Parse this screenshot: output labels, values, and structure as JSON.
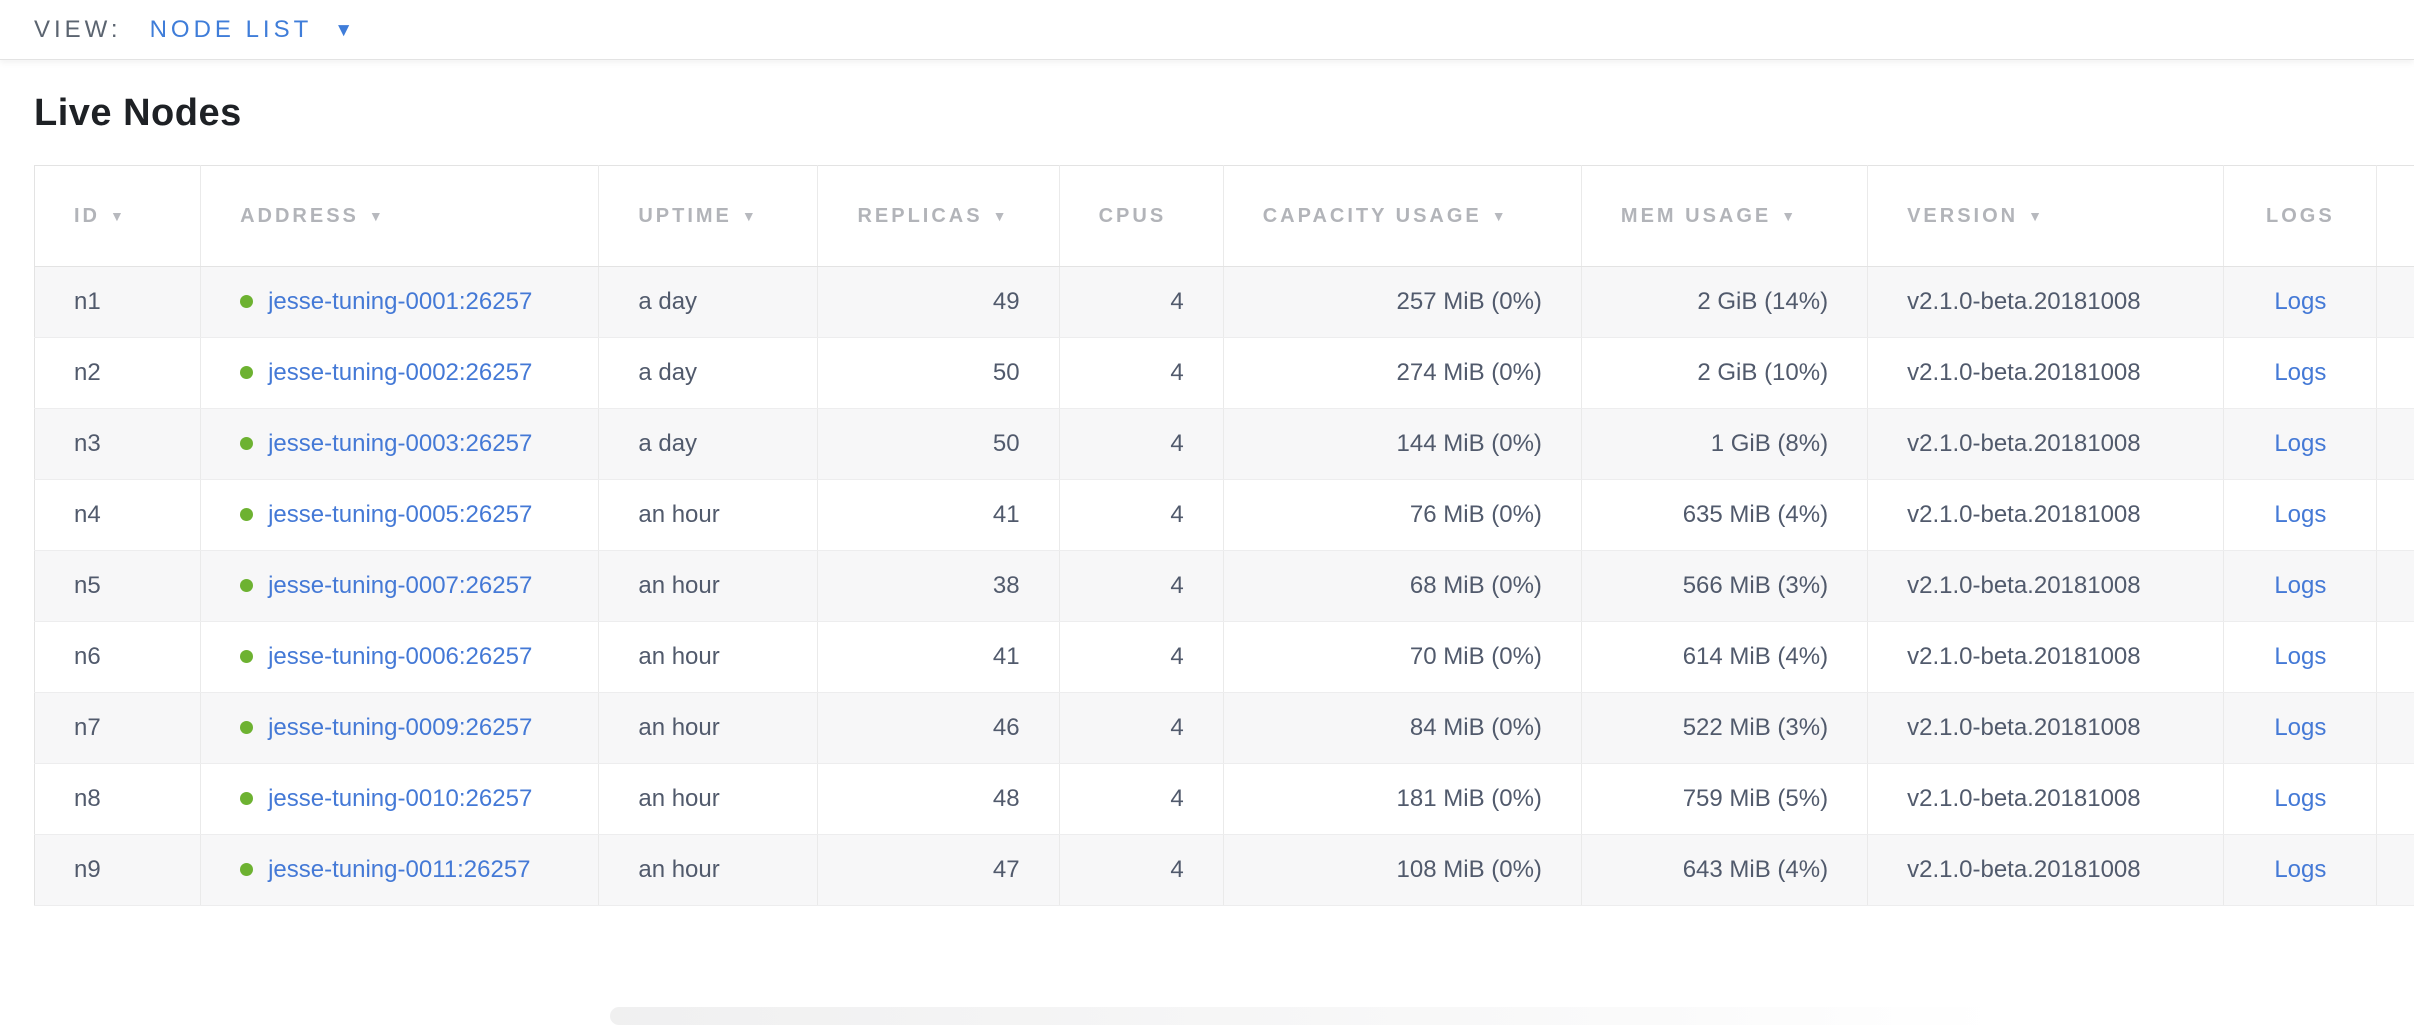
{
  "view_bar": {
    "label": "VIEW:",
    "selected": "NODE LIST"
  },
  "page": {
    "title": "Live Nodes"
  },
  "icons": {
    "dropdown_caret": "▼",
    "sort_desc": "▼",
    "status_dot": "live-green-dot"
  },
  "colors": {
    "accent_blue": "#3f7dd9",
    "link_blue": "#4479d6",
    "status_green": "#6db231",
    "header_gray": "#b2b4b9",
    "cell_text": "#515a6c",
    "row_stripe": "#f7f7f8"
  },
  "table": {
    "columns": [
      {
        "key": "id",
        "label": "ID",
        "sortable": true,
        "cell_align": "left"
      },
      {
        "key": "address",
        "label": "ADDRESS",
        "sortable": true,
        "cell_align": "left"
      },
      {
        "key": "uptime",
        "label": "UPTIME",
        "sortable": true,
        "cell_align": "left"
      },
      {
        "key": "replicas",
        "label": "REPLICAS",
        "sortable": true,
        "cell_align": "right"
      },
      {
        "key": "cpus",
        "label": "CPUS",
        "sortable": false,
        "cell_align": "right"
      },
      {
        "key": "capacity",
        "label": "CAPACITY USAGE",
        "sortable": true,
        "cell_align": "right"
      },
      {
        "key": "mem",
        "label": "MEM USAGE",
        "sortable": true,
        "cell_align": "right"
      },
      {
        "key": "version",
        "label": "VERSION",
        "sortable": true,
        "cell_align": "left"
      },
      {
        "key": "logs",
        "label": "LOGS",
        "sortable": false,
        "cell_align": "center"
      }
    ],
    "rows": [
      {
        "id": "n1",
        "status": "live",
        "address": "jesse-tuning-0001:26257",
        "uptime": "a day",
        "replicas": "49",
        "cpus": "4",
        "capacity": "257 MiB (0%)",
        "mem": "2 GiB (14%)",
        "version": "v2.1.0-beta.20181008",
        "logs": "Logs"
      },
      {
        "id": "n2",
        "status": "live",
        "address": "jesse-tuning-0002:26257",
        "uptime": "a day",
        "replicas": "50",
        "cpus": "4",
        "capacity": "274 MiB (0%)",
        "mem": "2 GiB (10%)",
        "version": "v2.1.0-beta.20181008",
        "logs": "Logs"
      },
      {
        "id": "n3",
        "status": "live",
        "address": "jesse-tuning-0003:26257",
        "uptime": "a day",
        "replicas": "50",
        "cpus": "4",
        "capacity": "144 MiB (0%)",
        "mem": "1 GiB (8%)",
        "version": "v2.1.0-beta.20181008",
        "logs": "Logs"
      },
      {
        "id": "n4",
        "status": "live",
        "address": "jesse-tuning-0005:26257",
        "uptime": "an hour",
        "replicas": "41",
        "cpus": "4",
        "capacity": "76 MiB (0%)",
        "mem": "635 MiB (4%)",
        "version": "v2.1.0-beta.20181008",
        "logs": "Logs"
      },
      {
        "id": "n5",
        "status": "live",
        "address": "jesse-tuning-0007:26257",
        "uptime": "an hour",
        "replicas": "38",
        "cpus": "4",
        "capacity": "68 MiB (0%)",
        "mem": "566 MiB (3%)",
        "version": "v2.1.0-beta.20181008",
        "logs": "Logs"
      },
      {
        "id": "n6",
        "status": "live",
        "address": "jesse-tuning-0006:26257",
        "uptime": "an hour",
        "replicas": "41",
        "cpus": "4",
        "capacity": "70 MiB (0%)",
        "mem": "614 MiB (4%)",
        "version": "v2.1.0-beta.20181008",
        "logs": "Logs"
      },
      {
        "id": "n7",
        "status": "live",
        "address": "jesse-tuning-0009:26257",
        "uptime": "an hour",
        "replicas": "46",
        "cpus": "4",
        "capacity": "84 MiB (0%)",
        "mem": "522 MiB (3%)",
        "version": "v2.1.0-beta.20181008",
        "logs": "Logs"
      },
      {
        "id": "n8",
        "status": "live",
        "address": "jesse-tuning-0010:26257",
        "uptime": "an hour",
        "replicas": "48",
        "cpus": "4",
        "capacity": "181 MiB (0%)",
        "mem": "759 MiB (5%)",
        "version": "v2.1.0-beta.20181008",
        "logs": "Logs"
      },
      {
        "id": "n9",
        "status": "live",
        "address": "jesse-tuning-0011:26257",
        "uptime": "an hour",
        "replicas": "47",
        "cpus": "4",
        "capacity": "108 MiB (0%)",
        "mem": "643 MiB (4%)",
        "version": "v2.1.0-beta.20181008",
        "logs": "Logs"
      }
    ]
  }
}
